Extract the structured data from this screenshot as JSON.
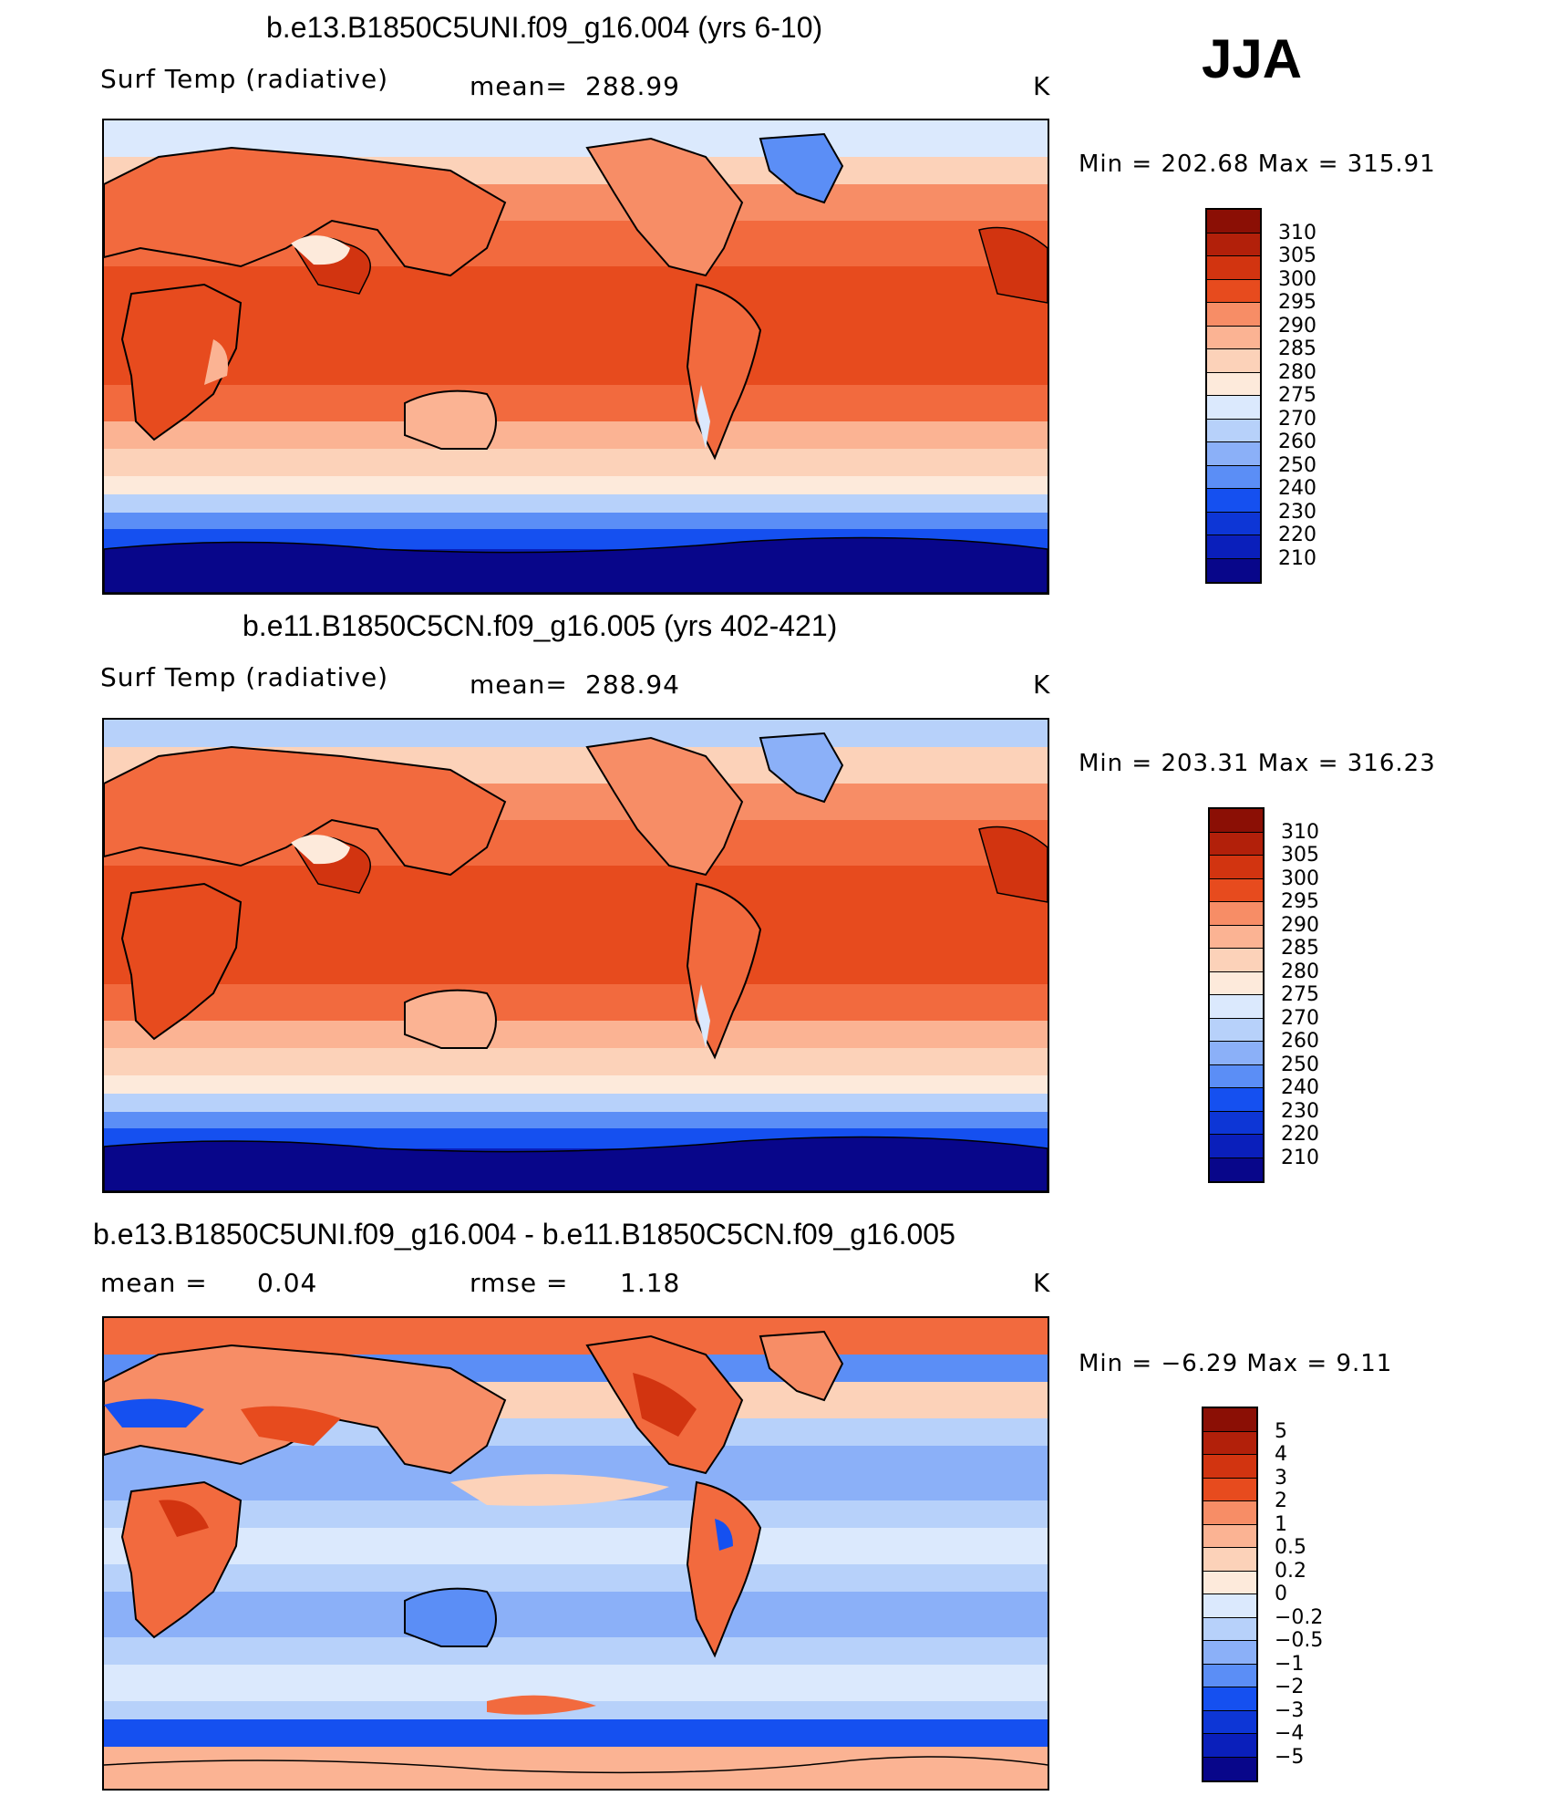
{
  "season": "JJA",
  "abs_ramp": [
    "#08068a",
    "#0a1fbb",
    "#0d36d6",
    "#1550f0",
    "#2f6bf5",
    "#5b8ef6",
    "#8bb0f8",
    "#b7d1fa",
    "#dbe9fd",
    "#fdeadb",
    "#fcd2b9",
    "#fbb393",
    "#f78d66",
    "#f26a3e",
    "#e74b1e",
    "#d23410",
    "#b2200a",
    "#8b0f05"
  ],
  "diff_ramp": [
    "#08068a",
    "#0a1fbb",
    "#0d36d6",
    "#1550f0",
    "#2f6bf5",
    "#5b8ef6",
    "#8bb0f8",
    "#b7d1fa",
    "#dbe9fd",
    "#fdeadb",
    "#fcd2b9",
    "#fbb393",
    "#f78d66",
    "#f26a3e",
    "#e74b1e",
    "#d23410",
    "#b2200a",
    "#8b0f05"
  ],
  "panels": [
    {
      "title": "b.e13.B1850C5UNI.f09_g16.004 (yrs 6-10)",
      "left_label": "Surf Temp (radiative)",
      "mid_label": "mean=",
      "mid_value": "288.99",
      "units": "K",
      "minmax": "Min  =  202.68  Max  =  315.91",
      "levels": [
        "310",
        "305",
        "300",
        "295",
        "290",
        "285",
        "280",
        "275",
        "270",
        "260",
        "250",
        "240",
        "230",
        "220",
        "210"
      ]
    },
    {
      "title": "b.e11.B1850C5CN.f09_g16.005 (yrs 402-421)",
      "left_label": "Surf Temp (radiative)",
      "mid_label": "mean=",
      "mid_value": "288.94",
      "units": "K",
      "minmax": "Min  =  203.31  Max  =  316.23",
      "levels": [
        "310",
        "305",
        "300",
        "295",
        "290",
        "285",
        "280",
        "275",
        "270",
        "260",
        "250",
        "240",
        "230",
        "220",
        "210"
      ]
    },
    {
      "title": "b.e13.B1850C5UNI.f09_g16.004 - b.e11.B1850C5CN.f09_g16.005",
      "left_label": "mean  =",
      "left_value": "0.04",
      "mid_label": "rmse  =",
      "mid_value": "1.18",
      "units": "K",
      "minmax": "Min  =    −6.29  Max  =      9.11",
      "levels": [
        "5",
        "4",
        "3",
        "2",
        "1",
        "0.5",
        "0.2",
        "0",
        "−0.2",
        "−0.5",
        "−1",
        "−2",
        "−3",
        "−4",
        "−5"
      ]
    }
  ]
}
